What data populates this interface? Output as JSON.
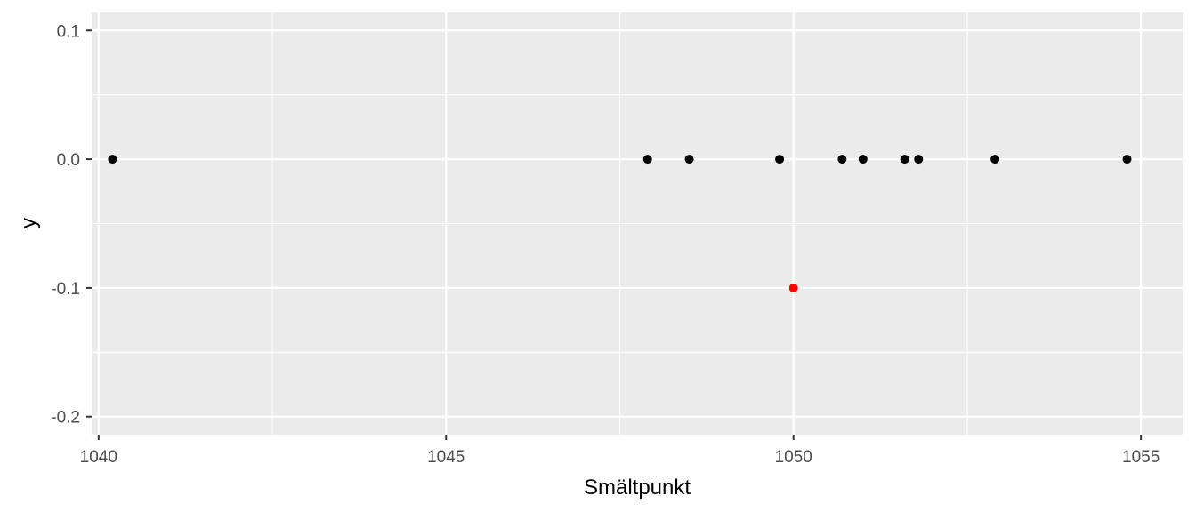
{
  "chart_data": {
    "type": "scatter",
    "title": "",
    "xlabel": "Smältpunkt",
    "ylabel": "y",
    "xlim": [
      1039.9,
      1055.6
    ],
    "ylim": [
      -0.214,
      0.114
    ],
    "x_ticks": [
      1040,
      1045,
      1050,
      1055
    ],
    "x_tick_labels": [
      "1040",
      "1045",
      "1050",
      "1055"
    ],
    "y_ticks": [
      0.1,
      0.0,
      -0.1,
      -0.2
    ],
    "y_tick_labels": [
      "0.1",
      "0.0",
      "-0.1",
      "-0.2"
    ],
    "grid": true,
    "background": "#EBEBEB",
    "grid_color": "#FFFFFF",
    "series": [
      {
        "color": "#000000",
        "points": [
          {
            "x": 1040.2,
            "y": 0
          },
          {
            "x": 1047.9,
            "y": 0
          },
          {
            "x": 1048.5,
            "y": 0
          },
          {
            "x": 1049.8,
            "y": 0
          },
          {
            "x": 1050.7,
            "y": 0
          },
          {
            "x": 1051.0,
            "y": 0
          },
          {
            "x": 1051.6,
            "y": 0
          },
          {
            "x": 1051.8,
            "y": 0
          },
          {
            "x": 1052.9,
            "y": 0
          },
          {
            "x": 1054.8,
            "y": 0
          }
        ]
      },
      {
        "color": "#FF0000",
        "points": [
          {
            "x": 1050.0,
            "y": -0.1
          }
        ]
      }
    ]
  }
}
